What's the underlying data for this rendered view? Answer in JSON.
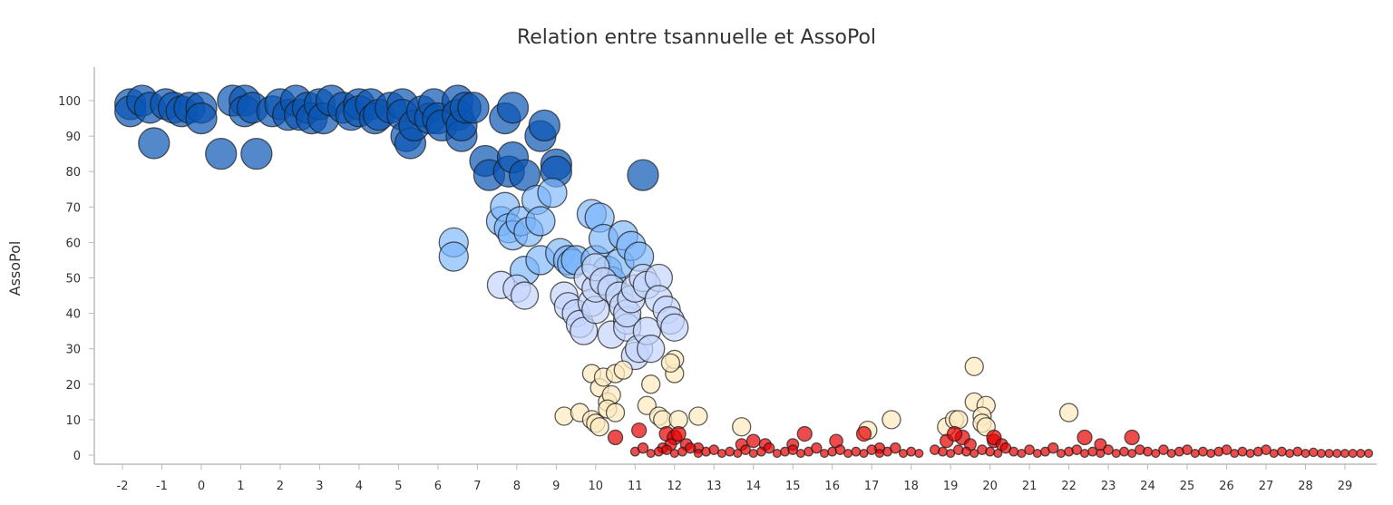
{
  "chart_data": {
    "type": "scatter",
    "subtype": "bubble",
    "title": "Relation entre tsannuelle et AssoPol",
    "xlabel": "",
    "ylabel": "AssoPol",
    "xlim": [
      -2.7,
      29.9
    ],
    "ylim": [
      -2.5,
      110
    ],
    "xticks": [
      -2,
      -1,
      0,
      1,
      2,
      3,
      4,
      5,
      6,
      7,
      8,
      9,
      10,
      11,
      12,
      13,
      14,
      15,
      16,
      17,
      18,
      19,
      20,
      21,
      22,
      23,
      24,
      25,
      26,
      27,
      28,
      29
    ],
    "yticks": [
      0,
      10,
      20,
      30,
      40,
      50,
      60,
      70,
      80,
      90,
      100
    ],
    "grid": false,
    "legend": "none",
    "series": [
      {
        "name": "dark-blue",
        "color": "#0a55b4",
        "points": [
          [
            -1.8,
            99
          ],
          [
            -1.8,
            97
          ],
          [
            -1.5,
            100
          ],
          [
            -1.3,
            98
          ],
          [
            -1.2,
            88
          ],
          [
            -0.9,
            99
          ],
          [
            -0.7,
            98
          ],
          [
            -0.5,
            97
          ],
          [
            -0.3,
            98
          ],
          [
            0,
            98
          ],
          [
            0,
            95
          ],
          [
            0.5,
            85
          ],
          [
            0.8,
            100
          ],
          [
            1.1,
            100
          ],
          [
            1.1,
            97
          ],
          [
            1.3,
            98
          ],
          [
            1.4,
            85
          ],
          [
            1.8,
            97
          ],
          [
            2,
            99
          ],
          [
            2.2,
            96
          ],
          [
            2.4,
            100
          ],
          [
            2.5,
            96
          ],
          [
            2.7,
            98
          ],
          [
            2.8,
            95
          ],
          [
            3,
            99
          ],
          [
            3.1,
            95
          ],
          [
            3.3,
            100
          ],
          [
            3.6,
            98
          ],
          [
            3.8,
            96
          ],
          [
            4,
            99
          ],
          [
            4,
            97
          ],
          [
            4.3,
            99
          ],
          [
            4.4,
            95
          ],
          [
            4.5,
            96
          ],
          [
            4.8,
            98
          ],
          [
            5.1,
            99
          ],
          [
            5.1,
            96
          ],
          [
            5.2,
            90
          ],
          [
            5.3,
            88
          ],
          [
            5.4,
            93
          ],
          [
            5.6,
            97
          ],
          [
            5.8,
            95
          ],
          [
            5.9,
            99
          ],
          [
            6,
            95
          ],
          [
            6.1,
            93
          ],
          [
            6.5,
            100
          ],
          [
            6.5,
            96
          ],
          [
            6.6,
            90
          ],
          [
            6.6,
            93
          ],
          [
            6.7,
            98
          ],
          [
            6.9,
            98
          ],
          [
            7.2,
            83
          ],
          [
            7.3,
            79
          ],
          [
            7.7,
            95
          ],
          [
            7.8,
            80
          ],
          [
            7.9,
            98
          ],
          [
            7.9,
            84
          ],
          [
            8.2,
            79
          ],
          [
            8.6,
            90
          ],
          [
            8.7,
            93
          ],
          [
            9,
            82
          ],
          [
            9,
            80
          ],
          [
            11.2,
            79
          ]
        ]
      },
      {
        "name": "light-blue",
        "color": "#7ab4fa",
        "points": [
          [
            6.4,
            60
          ],
          [
            6.4,
            56
          ],
          [
            7.6,
            66
          ],
          [
            7.7,
            70
          ],
          [
            7.8,
            64
          ],
          [
            7.9,
            62
          ],
          [
            8.1,
            66
          ],
          [
            8.2,
            52
          ],
          [
            8.3,
            63
          ],
          [
            8.5,
            72
          ],
          [
            8.6,
            66
          ],
          [
            8.6,
            55
          ],
          [
            8.9,
            74
          ],
          [
            9.1,
            57
          ],
          [
            9.3,
            55
          ],
          [
            9.4,
            54
          ],
          [
            9.5,
            55
          ],
          [
            9.9,
            68
          ],
          [
            10,
            55
          ],
          [
            10.1,
            67
          ],
          [
            10.2,
            61
          ],
          [
            10.3,
            52
          ],
          [
            10.4,
            49
          ],
          [
            10.6,
            54
          ],
          [
            10.7,
            62
          ],
          [
            10.9,
            59
          ],
          [
            11.1,
            56
          ]
        ]
      },
      {
        "name": "pale-blue",
        "color": "#c4d6fc",
        "points": [
          [
            7.6,
            48
          ],
          [
            8,
            47
          ],
          [
            8.2,
            45
          ],
          [
            9.2,
            45
          ],
          [
            9.3,
            42
          ],
          [
            9.5,
            40
          ],
          [
            9.6,
            37
          ],
          [
            9.7,
            35
          ],
          [
            9.8,
            50
          ],
          [
            9.9,
            43
          ],
          [
            10,
            41
          ],
          [
            10,
            47
          ],
          [
            10,
            53
          ],
          [
            10.2,
            49
          ],
          [
            10.4,
            47
          ],
          [
            10.4,
            34
          ],
          [
            10.6,
            45
          ],
          [
            10.7,
            42
          ],
          [
            10.8,
            38
          ],
          [
            10.8,
            36
          ],
          [
            10.8,
            40
          ],
          [
            10.9,
            44
          ],
          [
            11,
            47
          ],
          [
            11,
            28
          ],
          [
            11.1,
            30
          ],
          [
            11.2,
            50
          ],
          [
            11.3,
            48
          ],
          [
            11.3,
            35
          ],
          [
            11.4,
            30
          ],
          [
            11.6,
            50
          ],
          [
            11.6,
            44
          ],
          [
            11.8,
            41
          ],
          [
            11.9,
            38
          ],
          [
            12,
            36
          ]
        ]
      },
      {
        "name": "cream",
        "color": "#fdebc2",
        "points": [
          [
            9.2,
            11
          ],
          [
            9.6,
            12
          ],
          [
            9.9,
            10
          ],
          [
            10,
            9
          ],
          [
            10.1,
            8
          ],
          [
            9.9,
            23
          ],
          [
            10.1,
            19
          ],
          [
            10.2,
            22
          ],
          [
            10.3,
            15
          ],
          [
            10.4,
            17
          ],
          [
            10.3,
            13
          ],
          [
            10.5,
            12
          ],
          [
            10.5,
            23
          ],
          [
            10.7,
            24
          ],
          [
            11.3,
            14
          ],
          [
            11.4,
            20
          ],
          [
            11.6,
            11
          ],
          [
            11.7,
            10
          ],
          [
            12,
            23
          ],
          [
            12,
            27
          ],
          [
            11.9,
            26
          ],
          [
            12.1,
            10
          ],
          [
            12.6,
            11
          ],
          [
            13.7,
            8
          ],
          [
            16.9,
            7
          ],
          [
            17.5,
            10
          ],
          [
            18.9,
            8
          ],
          [
            19.1,
            10
          ],
          [
            19.2,
            10
          ],
          [
            19.6,
            25
          ],
          [
            19.6,
            15
          ],
          [
            19.9,
            14
          ],
          [
            19.8,
            11
          ],
          [
            19.8,
            9
          ],
          [
            19.9,
            8
          ],
          [
            22,
            12
          ]
        ]
      },
      {
        "name": "red",
        "color": "#e60000",
        "points": [
          [
            10.5,
            5
          ],
          [
            11.1,
            7
          ],
          [
            11.8,
            6
          ],
          [
            12,
            5
          ],
          [
            12.1,
            6
          ],
          [
            11.9,
            3
          ],
          [
            11.7,
            2
          ],
          [
            12.3,
            3
          ],
          [
            12.6,
            2
          ],
          [
            13.7,
            3
          ],
          [
            14.3,
            3
          ],
          [
            14,
            4
          ],
          [
            15.3,
            6
          ],
          [
            15,
            3
          ],
          [
            16.1,
            4
          ],
          [
            16.8,
            6
          ],
          [
            17.2,
            2
          ],
          [
            18.9,
            4
          ],
          [
            19.3,
            5
          ],
          [
            19.1,
            6
          ],
          [
            19.5,
            3
          ],
          [
            20.1,
            4
          ],
          [
            20.1,
            5
          ],
          [
            20.3,
            3
          ],
          [
            22.4,
            5
          ],
          [
            22.8,
            3
          ],
          [
            23.6,
            5
          ],
          [
            11,
            1
          ],
          [
            11.2,
            2
          ],
          [
            11.4,
            0.5
          ],
          [
            11.6,
            1
          ],
          [
            11.8,
            1.5
          ],
          [
            12,
            0.5
          ],
          [
            12.2,
            1
          ],
          [
            12.4,
            2
          ],
          [
            12.6,
            0.5
          ],
          [
            12.8,
            1
          ],
          [
            13,
            1.5
          ],
          [
            13.2,
            0.5
          ],
          [
            13.4,
            1
          ],
          [
            13.6,
            0.5
          ],
          [
            13.8,
            1.5
          ],
          [
            14,
            0.5
          ],
          [
            14.2,
            1
          ],
          [
            14.4,
            2
          ],
          [
            14.6,
            0.5
          ],
          [
            14.8,
            1
          ],
          [
            15,
            1.5
          ],
          [
            15.2,
            0.5
          ],
          [
            15.4,
            1
          ],
          [
            15.6,
            2
          ],
          [
            15.8,
            0.5
          ],
          [
            16,
            1
          ],
          [
            16.2,
            1.5
          ],
          [
            16.4,
            0.5
          ],
          [
            16.6,
            1
          ],
          [
            16.8,
            0.5
          ],
          [
            17,
            1.5
          ],
          [
            17.2,
            0.5
          ],
          [
            17.4,
            1
          ],
          [
            17.6,
            2
          ],
          [
            17.8,
            0.5
          ],
          [
            18,
            1
          ],
          [
            18.2,
            0.5
          ],
          [
            18.6,
            1.5
          ],
          [
            18.8,
            1
          ],
          [
            19,
            0.5
          ],
          [
            19.2,
            1.5
          ],
          [
            19.4,
            1
          ],
          [
            19.6,
            0.5
          ],
          [
            19.8,
            1.5
          ],
          [
            20,
            1
          ],
          [
            20.2,
            0.5
          ],
          [
            20.4,
            2
          ],
          [
            20.6,
            1
          ],
          [
            20.8,
            0.5
          ],
          [
            21,
            1.5
          ],
          [
            21.2,
            0.5
          ],
          [
            21.4,
            1
          ],
          [
            21.6,
            2
          ],
          [
            21.8,
            0.5
          ],
          [
            22,
            1
          ],
          [
            22.2,
            1.5
          ],
          [
            22.4,
            0.5
          ],
          [
            22.6,
            1
          ],
          [
            22.8,
            0.5
          ],
          [
            23,
            1.5
          ],
          [
            23.2,
            0.5
          ],
          [
            23.4,
            1
          ],
          [
            23.6,
            0.5
          ],
          [
            23.8,
            1.5
          ],
          [
            24,
            1
          ],
          [
            24.2,
            0.5
          ],
          [
            24.4,
            1.5
          ],
          [
            24.6,
            0.5
          ],
          [
            24.8,
            1
          ],
          [
            25,
            1.5
          ],
          [
            25.2,
            0.5
          ],
          [
            25.4,
            1
          ],
          [
            25.6,
            0.5
          ],
          [
            25.8,
            1
          ],
          [
            26,
            1.5
          ],
          [
            26.2,
            0.5
          ],
          [
            26.4,
            1
          ],
          [
            26.6,
            0.5
          ],
          [
            26.8,
            1
          ],
          [
            27,
            1.5
          ],
          [
            27.2,
            0.5
          ],
          [
            27.4,
            1
          ],
          [
            27.6,
            0.5
          ],
          [
            27.8,
            1
          ],
          [
            28,
            0.5
          ],
          [
            28.2,
            0.8
          ],
          [
            28.4,
            0.5
          ],
          [
            28.6,
            0.5
          ],
          [
            28.8,
            0.5
          ],
          [
            29,
            0.5
          ],
          [
            29.2,
            0.5
          ],
          [
            29.4,
            0.5
          ],
          [
            29.6,
            0.5
          ]
        ]
      }
    ]
  }
}
